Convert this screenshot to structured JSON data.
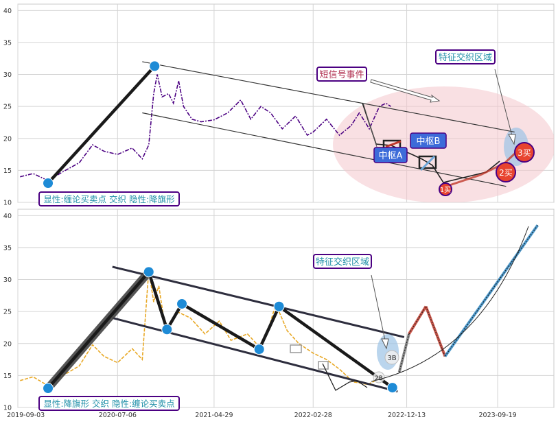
{
  "chart_data": [
    {
      "type": "line",
      "panel": "top",
      "ylim": [
        10,
        41
      ],
      "yticks": [
        "10",
        "15",
        "20",
        "25",
        "30",
        "35",
        "40"
      ],
      "grid": true,
      "price_color": "#4b0082",
      "trend_color": "#1a1a1a",
      "node_color": "#1e8bd6",
      "labels": {
        "note": "显性:缠论买卖点 交织 隐性:降旗形",
        "zone": "特征交织区域",
        "signal": "短信号事件",
        "pivot_a": "中枢A",
        "pivot_b": "中枢B",
        "buy1": "1买",
        "buy2": "2买",
        "buy3": "3买"
      },
      "pivots": [
        {
          "x": "2019-12-05",
          "y": 13.0
        },
        {
          "x": "2020-10-28",
          "y": 31.3
        }
      ],
      "channel_upper": [
        {
          "x": "2020-09-20",
          "y": 32.0
        },
        {
          "x": "2023-11-10",
          "y": 21.0
        }
      ],
      "channel_lower": [
        {
          "x": "2020-09-20",
          "y": 24.0
        },
        {
          "x": "2023-10-15",
          "y": 12.5
        }
      ],
      "price": [
        {
          "x": "2019-09-10",
          "y": 14.0
        },
        {
          "x": "2019-10-20",
          "y": 14.5
        },
        {
          "x": "2019-12-05",
          "y": 13.4
        },
        {
          "x": "2020-01-20",
          "y": 14.8
        },
        {
          "x": "2020-03-10",
          "y": 16.2
        },
        {
          "x": "2020-04-20",
          "y": 19.0
        },
        {
          "x": "2020-05-25",
          "y": 18.0
        },
        {
          "x": "2020-07-06",
          "y": 17.5
        },
        {
          "x": "2020-08-20",
          "y": 18.5
        },
        {
          "x": "2020-09-20",
          "y": 16.8
        },
        {
          "x": "2020-10-10",
          "y": 19.0
        },
        {
          "x": "2020-10-25",
          "y": 27.0
        },
        {
          "x": "2020-11-05",
          "y": 30.0
        },
        {
          "x": "2020-11-20",
          "y": 26.5
        },
        {
          "x": "2020-12-10",
          "y": 27.0
        },
        {
          "x": "2020-12-25",
          "y": 25.5
        },
        {
          "x": "2021-01-10",
          "y": 29.0
        },
        {
          "x": "2021-01-25",
          "y": 25.0
        },
        {
          "x": "2021-02-20",
          "y": 23.0
        },
        {
          "x": "2021-03-20",
          "y": 22.6
        },
        {
          "x": "2021-04-29",
          "y": 22.9
        },
        {
          "x": "2021-06-10",
          "y": 24.0
        },
        {
          "x": "2021-07-20",
          "y": 26.0
        },
        {
          "x": "2021-08-20",
          "y": 23.0
        },
        {
          "x": "2021-09-20",
          "y": 25.0
        },
        {
          "x": "2021-10-20",
          "y": 24.0
        },
        {
          "x": "2021-11-25",
          "y": 21.5
        },
        {
          "x": "2022-01-05",
          "y": 23.5
        },
        {
          "x": "2022-02-10",
          "y": 20.5
        },
        {
          "x": "2022-02-28",
          "y": 21.0
        },
        {
          "x": "2022-04-10",
          "y": 23.0
        },
        {
          "x": "2022-05-20",
          "y": 20.5
        },
        {
          "x": "2022-06-25",
          "y": 22.0
        },
        {
          "x": "2022-07-20",
          "y": 24.0
        },
        {
          "x": "2022-08-20",
          "y": 21.5
        },
        {
          "x": "2022-09-20",
          "y": 25.0
        },
        {
          "x": "2022-10-10",
          "y": 25.5
        },
        {
          "x": "2022-10-25",
          "y": 25.0
        }
      ]
    },
    {
      "type": "line",
      "panel": "bottom",
      "ylim": [
        10,
        41
      ],
      "yticks": [
        "10",
        "15",
        "20",
        "25",
        "30",
        "35",
        "40"
      ],
      "xticks": [
        "2019-09-03",
        "2020-07-06",
        "2021-04-29",
        "2022-02-28",
        "2022-12-13",
        "2023-09-19"
      ],
      "grid": true,
      "price_color": "#e8a825",
      "trend_color": "#1a1a1a",
      "node_color": "#1e8bd6",
      "labels": {
        "note": "显性:降旗形 交织 隐性:缠论买卖点",
        "zone": "特征交织区域",
        "b2": "2B",
        "b3": "3B"
      },
      "pivots": [
        {
          "x": "2019-12-05",
          "y": 13.0
        },
        {
          "x": "2020-10-10",
          "y": 31.2
        },
        {
          "x": "2020-12-05",
          "y": 22.2
        },
        {
          "x": "2021-01-20",
          "y": 26.2
        },
        {
          "x": "2021-09-15",
          "y": 19.1
        },
        {
          "x": "2021-11-15",
          "y": 25.8
        },
        {
          "x": "2022-10-30",
          "y": 13.1
        }
      ],
      "channel_upper": [
        {
          "x": "2020-06-20",
          "y": 32.0
        },
        {
          "x": "2022-12-05",
          "y": 21.0
        }
      ],
      "channel_lower": [
        {
          "x": "2020-06-20",
          "y": 24.0
        },
        {
          "x": "2022-11-15",
          "y": 12.5
        }
      ],
      "projection": [
        {
          "x": "2022-11-20",
          "y": 15.5
        },
        {
          "x": "2022-12-20",
          "y": 21.5
        },
        {
          "x": "2023-02-10",
          "y": 25.8
        },
        {
          "x": "2023-04-10",
          "y": 18.0
        },
        {
          "x": "2024-01-20",
          "y": 38.5
        }
      ],
      "price": [
        {
          "x": "2019-09-10",
          "y": 14.2
        },
        {
          "x": "2019-10-20",
          "y": 14.8
        },
        {
          "x": "2019-12-05",
          "y": 13.4
        },
        {
          "x": "2020-01-20",
          "y": 15.0
        },
        {
          "x": "2020-03-10",
          "y": 16.5
        },
        {
          "x": "2020-04-20",
          "y": 19.8
        },
        {
          "x": "2020-05-25",
          "y": 18.0
        },
        {
          "x": "2020-07-06",
          "y": 17.0
        },
        {
          "x": "2020-08-20",
          "y": 19.2
        },
        {
          "x": "2020-09-20",
          "y": 17.5
        },
        {
          "x": "2020-10-10",
          "y": 31.5
        },
        {
          "x": "2020-10-25",
          "y": 26.5
        },
        {
          "x": "2020-11-10",
          "y": 29.0
        },
        {
          "x": "2020-11-25",
          "y": 24.0
        },
        {
          "x": "2020-12-10",
          "y": 22.4
        },
        {
          "x": "2021-01-05",
          "y": 25.0
        },
        {
          "x": "2021-02-15",
          "y": 24.0
        },
        {
          "x": "2021-04-01",
          "y": 21.5
        },
        {
          "x": "2021-05-15",
          "y": 23.5
        },
        {
          "x": "2021-06-20",
          "y": 20.5
        },
        {
          "x": "2021-08-10",
          "y": 21.5
        },
        {
          "x": "2021-09-15",
          "y": 19.5
        },
        {
          "x": "2021-10-15",
          "y": 22.5
        },
        {
          "x": "2021-11-05",
          "y": 26.2
        },
        {
          "x": "2021-12-10",
          "y": 22.0
        },
        {
          "x": "2022-01-15",
          "y": 20.0
        },
        {
          "x": "2022-02-28",
          "y": 18.5
        },
        {
          "x": "2022-04-10",
          "y": 17.5
        },
        {
          "x": "2022-05-20",
          "y": 16.0
        },
        {
          "x": "2022-07-01",
          "y": 14.0
        },
        {
          "x": "2022-08-15",
          "y": 13.6
        },
        {
          "x": "2022-09-20",
          "y": 14.5
        }
      ]
    }
  ]
}
